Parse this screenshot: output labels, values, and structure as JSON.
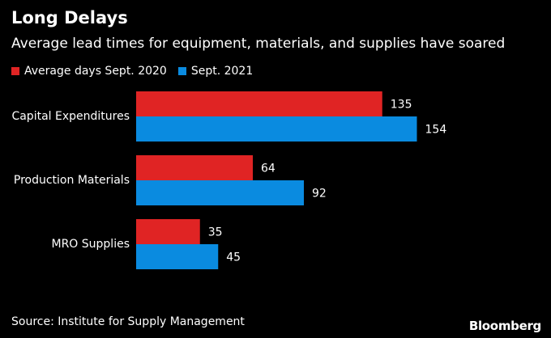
{
  "header": {
    "title": "Long Delays",
    "subtitle": "Average lead times for equipment, materials, and supplies have soared"
  },
  "footer": {
    "source": "Source: Institute for Supply Management",
    "brand": "Bloomberg"
  },
  "colors": {
    "series_2020": "#e02424",
    "series_2021": "#0a8be0",
    "background": "#000000",
    "text": "#ffffff"
  },
  "chart_data": {
    "type": "bar",
    "orientation": "horizontal",
    "title": "Long Delays",
    "subtitle": "Average lead times for equipment, materials, and supplies have soared",
    "categories": [
      "Capital Expenditures",
      "Production Materials",
      "MRO Supplies"
    ],
    "series": [
      {
        "name": "Average days Sept. 2020",
        "values": [
          135,
          64,
          35
        ]
      },
      {
        "name": "Sept. 2021",
        "values": [
          154,
          92,
          45
        ]
      }
    ],
    "xlabel": "",
    "ylabel": "",
    "xlim": [
      0,
      154
    ],
    "grid": false,
    "legend": "top-left"
  }
}
